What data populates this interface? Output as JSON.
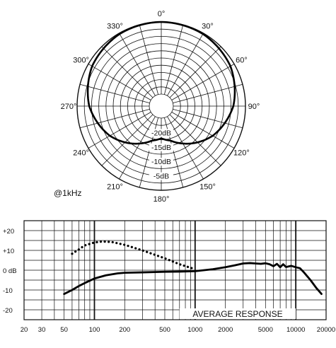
{
  "chart_data": [
    {
      "type": "polar",
      "angle_labels": [
        "0°",
        "30°",
        "60°",
        "90°",
        "120°",
        "150°",
        "180°",
        "210°",
        "240°",
        "270°",
        "300°",
        "330°"
      ],
      "radial_labels": [
        "-20dB",
        "-15dB",
        "-10dB",
        "-5dB"
      ],
      "rlim": [
        -25,
        0
      ],
      "annotation": "@1kHz",
      "grid": true,
      "pattern": {
        "angles": [
          0,
          30,
          60,
          90,
          120,
          150,
          165,
          180,
          195,
          210,
          240,
          270,
          300,
          330
        ],
        "levels": [
          0,
          -0.3,
          -1.5,
          -4.2,
          -8.6,
          -14.2,
          -16.8,
          -18,
          -16.8,
          -14.2,
          -8.6,
          -4.2,
          -1.5,
          -0.3
        ]
      }
    },
    {
      "type": "line",
      "xscale": "log",
      "xlim": [
        20,
        20000
      ],
      "ylim": [
        -25,
        25
      ],
      "x_ticks": [
        "20",
        "30",
        "50",
        "100",
        "200",
        "500",
        "1000",
        "2000",
        "5000",
        "10000",
        "20000"
      ],
      "y_ticks": [
        "+20",
        "+10",
        "0 dB",
        "-10",
        "-20"
      ],
      "annotation": "AVERAGE RESPONSE",
      "grid": true,
      "series": [
        {
          "style": "solid",
          "x": [
            50,
            60,
            70,
            80,
            100,
            130,
            170,
            200,
            300,
            500,
            700,
            1000,
            1500,
            2000,
            2500,
            3000,
            3500,
            4000,
            4500,
            5000,
            5500,
            6000,
            6500,
            7000,
            7500,
            8000,
            9000,
            10000,
            11000,
            12000,
            14000,
            16000,
            18000
          ],
          "y": [
            -12,
            -10,
            -8,
            -6.5,
            -4.2,
            -2.6,
            -1.6,
            -1.3,
            -1.1,
            -0.8,
            -0.7,
            -0.5,
            0.5,
            1.5,
            2.5,
            3.4,
            3.6,
            3.4,
            3.2,
            3.5,
            3.0,
            2.0,
            3.2,
            1.5,
            3.0,
            1.6,
            2.2,
            1.5,
            1.0,
            -1.0,
            -5.0,
            -9.0,
            -12.0
          ]
        },
        {
          "style": "dotted",
          "x": [
            60,
            70,
            80,
            100,
            120,
            150,
            200,
            300,
            500,
            700,
            1000
          ],
          "y": [
            8.3,
            10.5,
            12.5,
            14.0,
            14.5,
            14.2,
            12.8,
            10.0,
            6.0,
            3.0,
            0.5
          ]
        }
      ]
    }
  ]
}
